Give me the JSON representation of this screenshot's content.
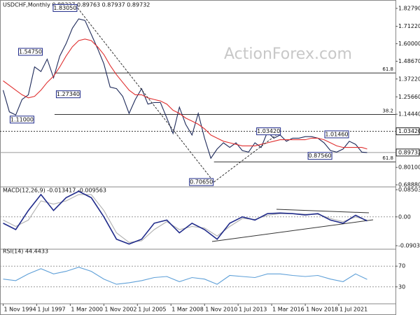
{
  "chart_data": [
    {
      "type": "line",
      "title": "USDCHF,Monthly  0.88327 0.89763 0.87937 0.89732",
      "watermark": "ActionForex.com",
      "xlim": [
        "1994-08-01",
        "2026-01-01"
      ],
      "ylim": [
        0.6888,
        1.8279
      ],
      "yticks": [
        {
          "value": 1.8279,
          "label": "1.82790"
        },
        {
          "value": 1.7122,
          "label": "1.71220"
        },
        {
          "value": 1.6,
          "label": "1.60000"
        },
        {
          "value": 1.4867,
          "label": "1.48670"
        },
        {
          "value": 1.3722,
          "label": "1.37220"
        },
        {
          "value": 1.2566,
          "label": "1.25660"
        },
        {
          "value": 1.1444,
          "label": "1.14440"
        },
        {
          "value": 0.801,
          "label": "0.80100"
        },
        {
          "value": 0.6888,
          "label": "0.68880"
        }
      ],
      "x": [
        "1994-11-01",
        "1995-05-01",
        "1995-11-01",
        "1996-05-01",
        "1996-11-01",
        "1997-05-01",
        "1997-11-01",
        "1998-05-01",
        "1998-11-01",
        "1999-05-01",
        "1999-11-01",
        "2000-05-01",
        "2000-11-01",
        "2001-05-01",
        "2001-11-01",
        "2002-05-01",
        "2002-11-01",
        "2003-05-01",
        "2003-11-01",
        "2004-05-01",
        "2004-11-01",
        "2005-05-01",
        "2005-11-01",
        "2006-05-01",
        "2006-11-01",
        "2007-05-01",
        "2007-11-01",
        "2008-05-01",
        "2008-11-01",
        "2009-05-01",
        "2009-11-01",
        "2010-05-01",
        "2010-11-01",
        "2011-05-01",
        "2011-11-01",
        "2012-05-01",
        "2012-11-01",
        "2013-05-01",
        "2013-11-01",
        "2014-05-01",
        "2014-11-01",
        "2015-05-01",
        "2015-11-01",
        "2016-05-01",
        "2016-11-01",
        "2017-05-01",
        "2017-11-01",
        "2018-05-01",
        "2018-11-01",
        "2019-05-01",
        "2019-11-01",
        "2020-05-01",
        "2020-11-01",
        "2021-05-01",
        "2021-11-01",
        "2022-05-01",
        "2022-11-01",
        "2023-05-01",
        "2023-10-01"
      ],
      "series": [
        {
          "name": "USDCHF",
          "color": "#1e2a5a",
          "values": [
            1.3,
            1.16,
            1.14,
            1.24,
            1.27,
            1.45,
            1.42,
            1.5,
            1.38,
            1.52,
            1.6,
            1.7,
            1.76,
            1.75,
            1.66,
            1.57,
            1.47,
            1.32,
            1.31,
            1.26,
            1.15,
            1.24,
            1.31,
            1.21,
            1.22,
            1.22,
            1.12,
            1.02,
            1.19,
            1.08,
            1.01,
            1.15,
            0.99,
            0.86,
            0.92,
            0.96,
            0.93,
            0.96,
            0.91,
            0.9,
            0.96,
            0.93,
            1.03,
            0.99,
            1.01,
            0.97,
            0.99,
            0.99,
            1.0,
            1.0,
            0.99,
            0.96,
            0.91,
            0.9,
            0.92,
            0.97,
            0.95,
            0.9,
            0.8973
          ]
        },
        {
          "name": "MA",
          "color": "#e03030",
          "values": [
            1.36,
            1.33,
            1.3,
            1.27,
            1.25,
            1.26,
            1.3,
            1.35,
            1.39,
            1.45,
            1.52,
            1.58,
            1.62,
            1.63,
            1.62,
            1.58,
            1.53,
            1.46,
            1.4,
            1.35,
            1.3,
            1.27,
            1.27,
            1.25,
            1.24,
            1.23,
            1.21,
            1.17,
            1.15,
            1.12,
            1.1,
            1.08,
            1.05,
            1.01,
            0.99,
            0.97,
            0.96,
            0.95,
            0.94,
            0.94,
            0.94,
            0.95,
            0.96,
            0.97,
            0.98,
            0.98,
            0.98,
            0.98,
            0.98,
            0.99,
            0.99,
            0.98,
            0.96,
            0.94,
            0.93,
            0.93,
            0.93,
            0.93,
            0.92
          ]
        }
      ],
      "annotations": [
        {
          "label": "1.83050",
          "x": "2000-10-01",
          "value": 1.8305,
          "anchor": "left"
        },
        {
          "label": "1.54750",
          "x": "1998-01-01",
          "value": 1.5475,
          "anchor": "left"
        },
        {
          "label": "1.27340",
          "x": "1999-01-01",
          "value": 1.2734,
          "anchor": "right"
        },
        {
          "label": "1.11000",
          "x": "1995-05-01",
          "value": 1.11,
          "anchor": "right"
        },
        {
          "label": "0.70650",
          "x": "2011-08-01",
          "value": 0.7065,
          "anchor": "left"
        },
        {
          "label": "1.03420",
          "x": "2016-12-01",
          "value": 1.0342,
          "anchor": "left"
        },
        {
          "label": "0.87560",
          "x": "2021-01-01",
          "value": 0.8756,
          "anchor": "left"
        },
        {
          "label": "1.01460",
          "x": "2022-05-01",
          "value": 1.0146,
          "anchor": "left"
        }
      ],
      "levels": [
        {
          "label": "61.8",
          "value": 1.411,
          "from": "1998-12-01"
        },
        {
          "label": "38.2",
          "value": 1.143,
          "from": "1998-12-01"
        },
        {
          "label": "61.8",
          "value": 0.837,
          "from": "2011-08-01"
        }
      ],
      "axis_marks": [
        {
          "label": "1.03420",
          "value": 1.0342,
          "dashed": true
        },
        {
          "label": "0.89732",
          "value": 0.89732,
          "dashed": false
        }
      ]
    },
    {
      "type": "line",
      "title": "MACD(12,26,9) -0.013417 -0.009563",
      "xlim": [
        "1994-08-01",
        "2026-01-01"
      ],
      "ylim": [
        -0.090302,
        0.085035
      ],
      "yticks": [
        {
          "value": 0.085035,
          "label": "0.085035"
        },
        {
          "value": 0,
          "label": "0.00"
        },
        {
          "value": -0.090302,
          "label": "-0.090302"
        }
      ],
      "zero_line": true,
      "x": [
        "1994-11-01",
        "1995-11-01",
        "1996-11-01",
        "1997-11-01",
        "1998-11-01",
        "1999-11-01",
        "2000-11-01",
        "2001-11-01",
        "2002-11-01",
        "2003-11-01",
        "2004-11-01",
        "2005-11-01",
        "2006-11-01",
        "2007-11-01",
        "2008-11-01",
        "2009-11-01",
        "2010-11-01",
        "2011-11-01",
        "2012-11-01",
        "2013-11-01",
        "2014-11-01",
        "2015-11-01",
        "2016-11-01",
        "2017-11-01",
        "2018-11-01",
        "2019-11-01",
        "2020-11-01",
        "2021-11-01",
        "2022-11-01",
        "2023-10-01"
      ],
      "series": [
        {
          "name": "Signal",
          "color": "#b0b0b0",
          "values": [
            -0.01,
            -0.03,
            -0.01,
            0.05,
            0.04,
            0.05,
            0.07,
            0.07,
            0.02,
            -0.05,
            -0.08,
            -0.075,
            -0.04,
            -0.015,
            -0.04,
            -0.03,
            -0.035,
            -0.06,
            -0.03,
            -0.005,
            -0.008,
            0.005,
            0.01,
            0.01,
            0.008,
            0.008,
            -0.005,
            -0.015,
            0.0,
            -0.01
          ]
        },
        {
          "name": "MACD",
          "color": "#1f2a8a",
          "values": [
            -0.02,
            -0.04,
            0.02,
            0.07,
            0.02,
            0.06,
            0.08,
            0.06,
            0.0,
            -0.07,
            -0.085,
            -0.07,
            -0.02,
            -0.01,
            -0.05,
            -0.02,
            -0.04,
            -0.07,
            -0.02,
            0.0,
            -0.01,
            0.01,
            0.012,
            0.01,
            0.006,
            0.01,
            -0.01,
            -0.02,
            0.005,
            -0.013
          ]
        }
      ]
    },
    {
      "type": "line",
      "title": "RSI(14) 44.4433",
      "xlim": [
        "1994-08-01",
        "2026-01-01"
      ],
      "ylim": [
        0,
        100
      ],
      "yticks": [
        70,
        30
      ],
      "grid": true,
      "xticks": [
        {
          "value": "1994-11-01",
          "label": "1 Nov 1994"
        },
        {
          "value": "1997-07-01",
          "label": "1 Jul 1997"
        },
        {
          "value": "2000-03-01",
          "label": "1 Mar 2000"
        },
        {
          "value": "2002-11-01",
          "label": "1 Nov 2002"
        },
        {
          "value": "2005-07-01",
          "label": "1 Jul 2005"
        },
        {
          "value": "2008-03-01",
          "label": "1 Mar 2008"
        },
        {
          "value": "2010-11-01",
          "label": "1 Nov 2010"
        },
        {
          "value": "2013-07-01",
          "label": "1 Jul 2013"
        },
        {
          "value": "2016-03-01",
          "label": "1 Mar 2016"
        },
        {
          "value": "2018-11-01",
          "label": "1 Nov 2018"
        },
        {
          "value": "2021-07-01",
          "label": "1 Jul 2021"
        }
      ],
      "x": [
        "1994-11-01",
        "1995-11-01",
        "1996-11-01",
        "1997-11-01",
        "1998-11-01",
        "1999-11-01",
        "2000-11-01",
        "2001-11-01",
        "2002-11-01",
        "2003-11-01",
        "2004-11-01",
        "2005-11-01",
        "2006-11-01",
        "2007-11-01",
        "2008-11-01",
        "2009-11-01",
        "2010-11-01",
        "2011-11-01",
        "2012-11-01",
        "2013-11-01",
        "2014-11-01",
        "2015-11-01",
        "2016-11-01",
        "2017-11-01",
        "2018-11-01",
        "2019-11-01",
        "2020-11-01",
        "2021-11-01",
        "2022-11-01",
        "2023-10-01"
      ],
      "series": [
        {
          "name": "RSI",
          "color": "#5fa0d8",
          "values": [
            45,
            42,
            55,
            65,
            55,
            60,
            68,
            60,
            45,
            35,
            38,
            42,
            48,
            50,
            40,
            48,
            45,
            35,
            52,
            50,
            48,
            55,
            55,
            52,
            50,
            52,
            45,
            40,
            55,
            44.4433
          ]
        }
      ]
    }
  ]
}
